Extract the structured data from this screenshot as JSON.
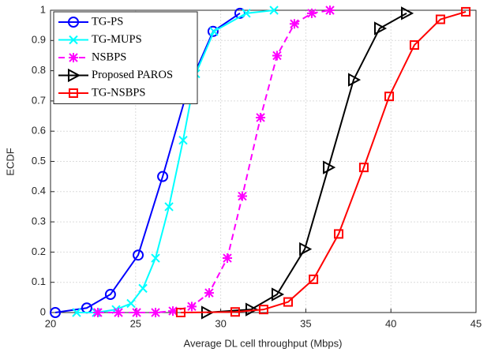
{
  "chart_data": {
    "type": "line",
    "xlabel": "Average DL cell throughput (Mbps)",
    "ylabel": "ECDF",
    "xlim": [
      20,
      45
    ],
    "xticks": [
      20,
      25,
      30,
      35,
      40,
      45
    ],
    "ylim": [
      0,
      1
    ],
    "yticks": [
      0,
      0.1,
      0.2,
      0.3,
      0.4,
      0.5,
      0.6,
      0.7,
      0.8,
      0.9,
      1
    ],
    "grid": true,
    "legend_position": "upper left",
    "series": [
      {
        "name": "TG-PS",
        "color": "#0000ff",
        "marker": "circle",
        "linestyle": "solid",
        "x": [
          20.28,
          22.13,
          23.52,
          25.15,
          26.59,
          28.07,
          29.55,
          31.13
        ],
        "values": [
          0,
          0.015,
          0.06,
          0.19,
          0.45,
          0.74,
          0.93,
          0.99
        ]
      },
      {
        "name": "TG-MUPS",
        "color": "#00ffff",
        "marker": "x",
        "linestyle": "solid",
        "x": [
          21.53,
          22.69,
          23.85,
          24.73,
          25.43,
          26.17,
          26.96,
          27.79,
          28.53,
          29.6,
          31.5,
          33.13
        ],
        "values": [
          0,
          0,
          0.01,
          0.03,
          0.08,
          0.18,
          0.35,
          0.57,
          0.79,
          0.93,
          0.99,
          1
        ]
      },
      {
        "name": "NSBPS",
        "color": "#ff00ff",
        "marker": "asterisk",
        "linestyle": "dashed",
        "x": [
          22.78,
          23.99,
          25.06,
          26.17,
          27.19,
          28.3,
          29.32,
          30.39,
          31.27,
          32.34,
          33.31,
          34.33,
          35.35,
          36.42
        ],
        "values": [
          0,
          0,
          0,
          0,
          0.005,
          0.02,
          0.065,
          0.18,
          0.385,
          0.645,
          0.85,
          0.955,
          0.99,
          1
        ]
      },
      {
        "name": "Proposed PAROS",
        "color": "#000000",
        "marker": "triangle",
        "linestyle": "solid",
        "x": [
          29.18,
          31.78,
          33.31,
          34.94,
          36.33,
          37.81,
          39.34,
          40.92
        ],
        "values": [
          0,
          0.01,
          0.06,
          0.21,
          0.48,
          0.77,
          0.94,
          0.99
        ]
      },
      {
        "name": "TG-NSBPS",
        "color": "#ff0000",
        "marker": "square",
        "linestyle": "solid",
        "x": [
          27.65,
          30.85,
          32.52,
          33.96,
          35.45,
          36.93,
          38.41,
          39.9,
          41.38,
          42.91,
          44.4
        ],
        "values": [
          0,
          0.002,
          0.01,
          0.035,
          0.11,
          0.26,
          0.48,
          0.715,
          0.885,
          0.97,
          0.995
        ]
      }
    ]
  }
}
